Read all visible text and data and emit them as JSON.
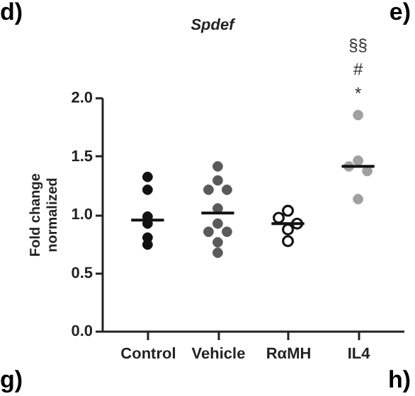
{
  "chart_data": {
    "type": "scatter",
    "title": "Spdef",
    "ylabel": "Fold change normalized",
    "categories": [
      "Control",
      "Vehicle",
      "RαMH",
      "IL4"
    ],
    "ylim": [
      0,
      2
    ],
    "yticks": [
      {
        "value": 0,
        "label": "0.0"
      },
      {
        "value": 0.5,
        "label": "0.5"
      },
      {
        "value": 1,
        "label": "1.0"
      },
      {
        "value": 1.5,
        "label": "1.5"
      },
      {
        "value": 2,
        "label": "2.0"
      }
    ],
    "grid": false,
    "marker": "circle",
    "series": [
      {
        "color": "#111111",
        "x": [
          "Control",
          "Control",
          "Control",
          "Control",
          "Control",
          "Control"
        ],
        "values": [
          1.32,
          1.21,
          0.98,
          0.92,
          0.8,
          0.74
        ]
      },
      {
        "color": "#5a5a5a",
        "x": [
          "Vehicle",
          "Vehicle",
          "Vehicle",
          "Vehicle",
          "Vehicle",
          "Vehicle",
          "Vehicle",
          "Vehicle",
          "Vehicle",
          "Vehicle"
        ],
        "values": [
          1.41,
          1.29,
          1.21,
          1.21,
          1.05,
          0.92,
          0.85,
          0.85,
          0.76,
          0.67
        ]
      },
      {
        "color": "#ffffff",
        "x": [
          "RαMH",
          "RαMH",
          "RαMH",
          "RαMH",
          "RαMH"
        ],
        "values": [
          1.03,
          0.97,
          0.92,
          0.87,
          0.77
        ]
      },
      {
        "color": "#a0a0a0",
        "x": [
          "IL4",
          "IL4",
          "IL4",
          "IL4",
          "IL4"
        ],
        "values": [
          1.85,
          1.46,
          1.41,
          1.37,
          1.13
        ]
      },
      {
        "type": "box",
        "color": "#111111",
        "boxes": [
          {
            "low": 0.95,
            "q1": 0.95,
            "median": 0.95,
            "q3": 0.95,
            "high": 0.95
          },
          {
            "low": 1.01,
            "q1": 1.01,
            "median": 1.01,
            "q3": 1.01,
            "high": 1.01
          },
          {
            "low": 0.92,
            "q1": 0.92,
            "median": 0.92,
            "q3": 0.92,
            "high": 0.92
          },
          {
            "low": 1.41,
            "q1": 1.41,
            "median": 1.41,
            "q3": 1.41,
            "high": 1.41
          }
        ]
      }
    ],
    "annotations": [
      "§§",
      "#",
      "*",
      "d)",
      "e)",
      "g)",
      "h)"
    ]
  }
}
